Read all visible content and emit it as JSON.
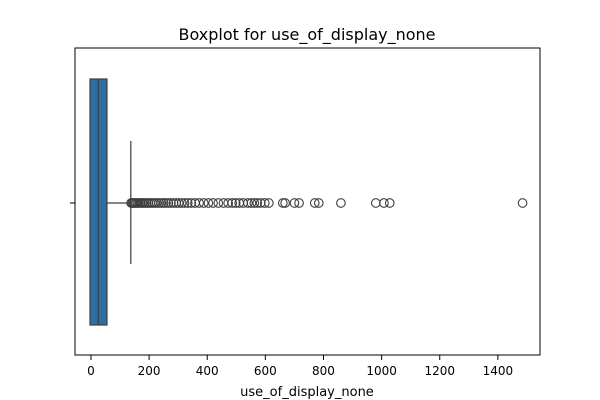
{
  "chart_data": {
    "type": "boxplot",
    "orientation": "horizontal",
    "title": "Boxplot for use_of_display_none",
    "xlabel": "use_of_display_none",
    "ylabel": "",
    "xlim": [
      -55,
      1545
    ],
    "x_ticks": [
      0,
      200,
      400,
      600,
      800,
      1000,
      1200,
      1400
    ],
    "box": {
      "whisker_low": 0,
      "q1": 0,
      "median": 25,
      "q3": 55,
      "whisker_high": 137
    },
    "outliers": [
      138,
      142,
      146,
      150,
      155,
      160,
      165,
      170,
      175,
      180,
      186,
      192,
      198,
      205,
      212,
      219,
      226,
      234,
      242,
      250,
      258,
      266,
      275,
      284,
      293,
      302,
      312,
      322,
      333,
      345,
      358,
      372,
      388,
      404,
      420,
      438,
      456,
      472,
      486,
      498,
      510,
      524,
      540,
      552,
      562,
      572,
      584,
      598,
      612,
      660,
      668,
      700,
      716,
      770,
      784,
      860,
      980,
      1008,
      1028,
      1485
    ],
    "colors": {
      "box_fill": "#2f6ea5",
      "line": "#3d3d3d",
      "outlier_edge": "#3d3d3d",
      "axes": "#000000"
    },
    "grid": false,
    "legend": "none"
  }
}
